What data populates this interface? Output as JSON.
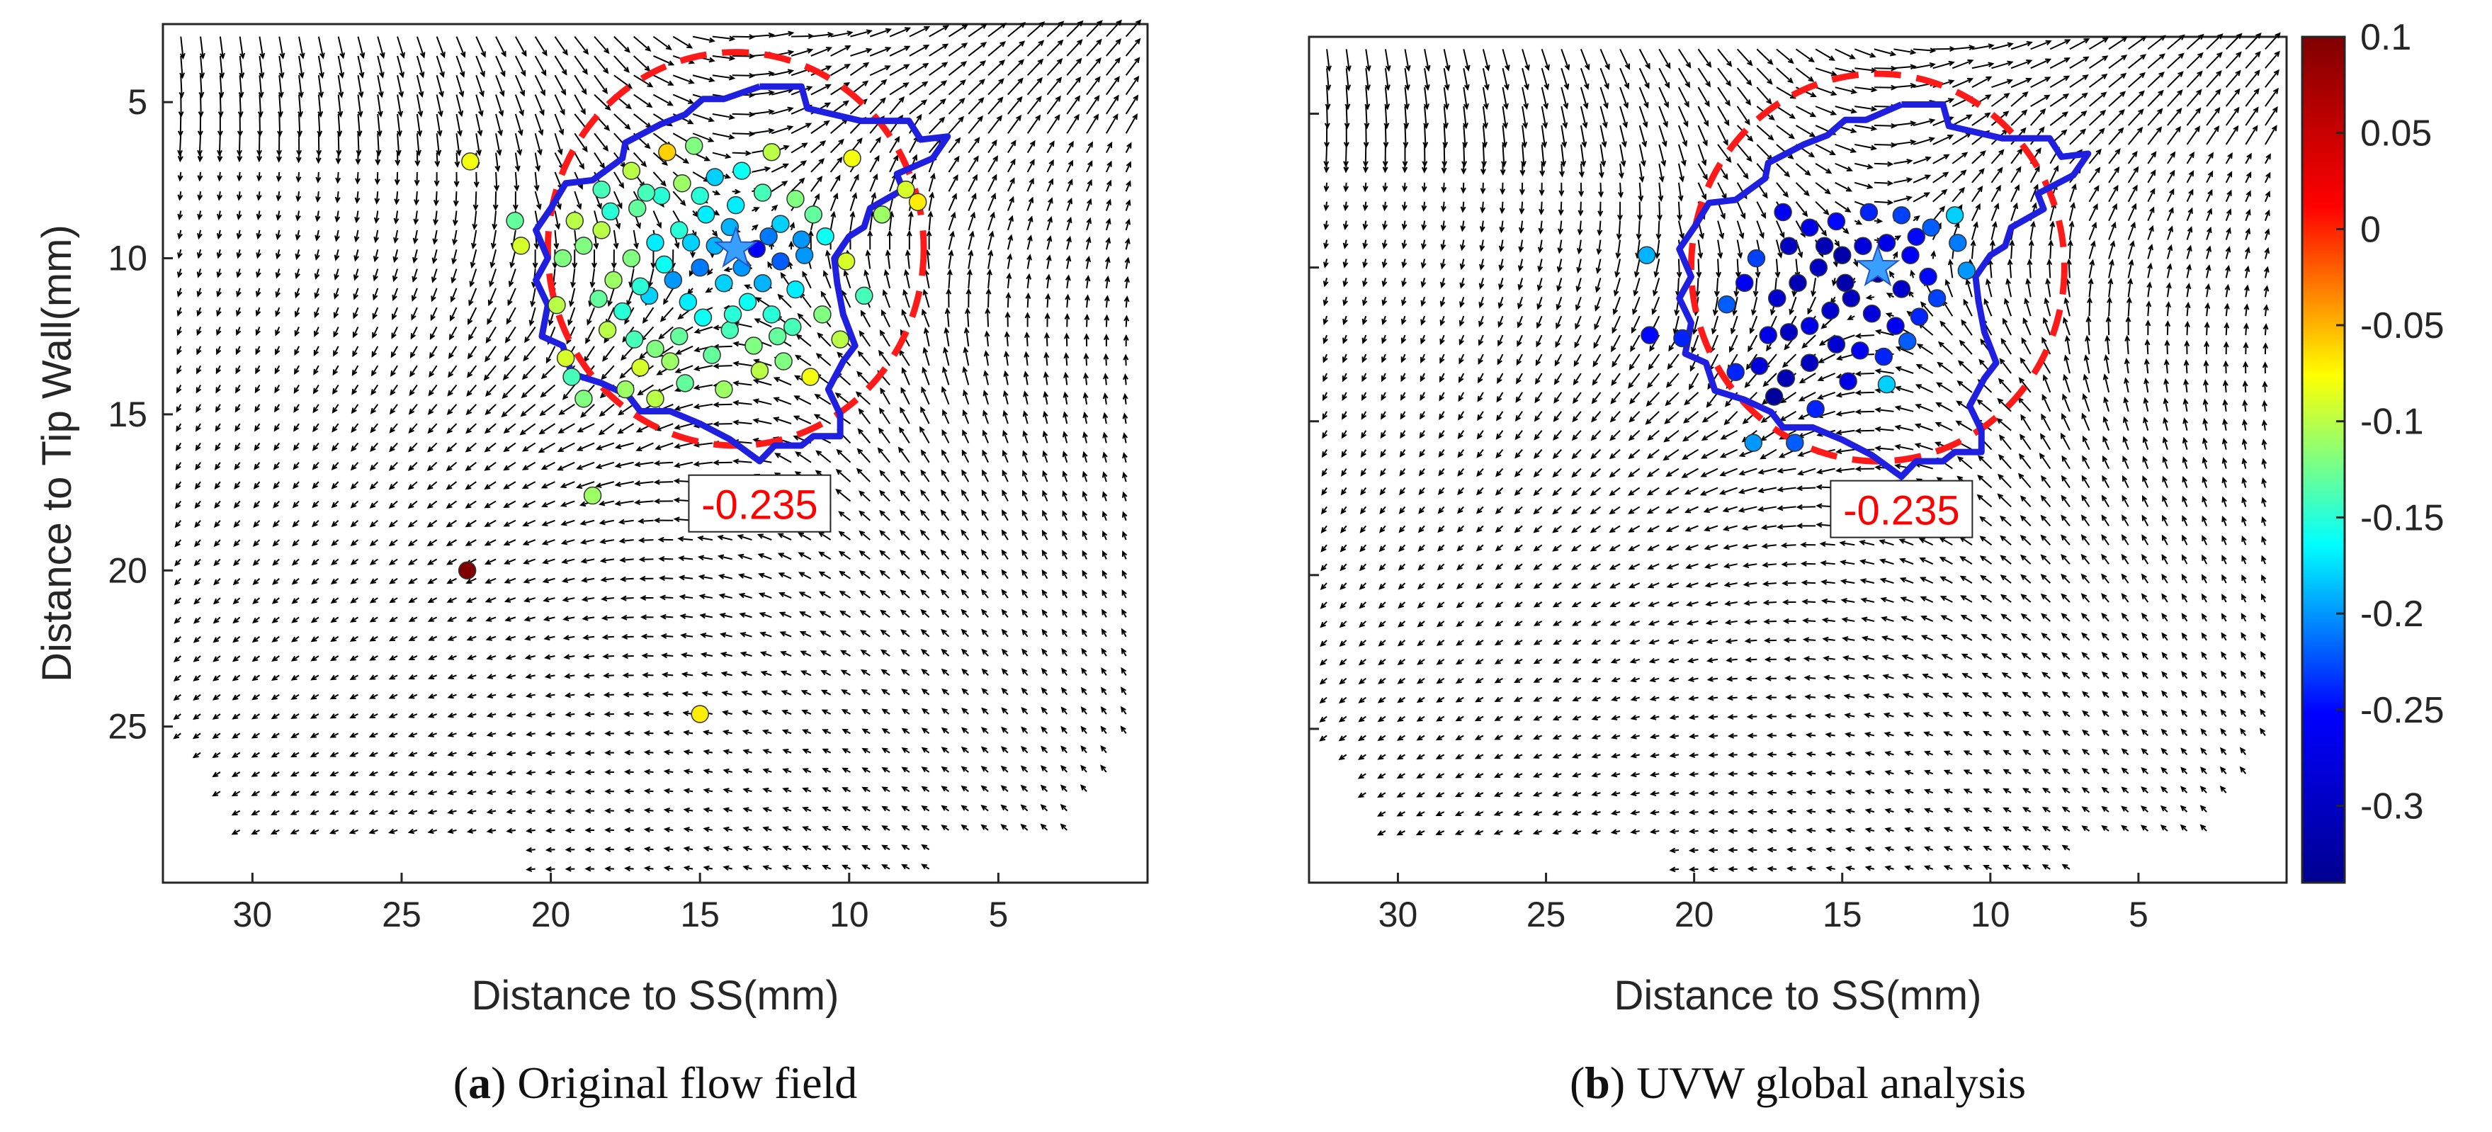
{
  "colormap": {
    "stops": [
      "#00008f",
      "#0000ff",
      "#00ffff",
      "#ffff00",
      "#ff0000",
      "#800000"
    ],
    "min": -0.34,
    "max": 0.1,
    "ticks": [
      0.1,
      0.05,
      0,
      -0.05,
      -0.1,
      -0.15,
      -0.2,
      -0.25,
      -0.3
    ],
    "tick_labels": [
      "0.1",
      "0.05",
      "0",
      "-0.05",
      "-0.1",
      "-0.15",
      "-0.2",
      "-0.25",
      "-0.3"
    ]
  },
  "chart_data": [
    {
      "type": "scatter",
      "panel": "a",
      "caption_letter": "a",
      "caption_text": " Original flow field",
      "xlabel": "Distance to SS(mm)",
      "ylabel": "Distance to Tip Wall(mm)",
      "xlim": [
        33,
        0
      ],
      "ylim": [
        2.5,
        30
      ],
      "x_reversed": true,
      "y_reversed": true,
      "xticks": [
        30,
        25,
        20,
        15,
        10,
        5
      ],
      "yticks": [
        5,
        10,
        15,
        20,
        25
      ],
      "vortex_center": {
        "x": 13.8,
        "y": 9.7
      },
      "reference_circle": {
        "cx": 13.8,
        "cy": 9.7,
        "r": 6.3
      },
      "contour_label": "-0.235",
      "contour_label_position": {
        "x": 13.0,
        "y": 17.9
      },
      "contour_polyline": [
        [
          13.0,
          4.5
        ],
        [
          11.6,
          4.5
        ],
        [
          11.4,
          5.2
        ],
        [
          9.6,
          5.6
        ],
        [
          8.0,
          5.6
        ],
        [
          7.6,
          6.2
        ],
        [
          6.7,
          6.1
        ],
        [
          7.2,
          6.8
        ],
        [
          8.4,
          7.3
        ],
        [
          8.2,
          7.8
        ],
        [
          9.3,
          8.4
        ],
        [
          9.5,
          9.0
        ],
        [
          10.0,
          9.3
        ],
        [
          10.5,
          10.0
        ],
        [
          10.4,
          10.8
        ],
        [
          10.2,
          11.8
        ],
        [
          9.8,
          12.8
        ],
        [
          10.2,
          13.3
        ],
        [
          10.7,
          14.2
        ],
        [
          10.3,
          15.0
        ],
        [
          10.3,
          15.7
        ],
        [
          11.2,
          15.7
        ],
        [
          11.6,
          16.0
        ],
        [
          12.5,
          16.0
        ],
        [
          13.0,
          16.5
        ],
        [
          14.0,
          15.8
        ],
        [
          15.0,
          15.3
        ],
        [
          16.0,
          14.9
        ],
        [
          17.0,
          14.9
        ],
        [
          17.4,
          14.4
        ],
        [
          18.3,
          14.0
        ],
        [
          19.3,
          13.7
        ],
        [
          19.6,
          12.8
        ],
        [
          20.3,
          12.5
        ],
        [
          20.1,
          11.5
        ],
        [
          20.5,
          10.7
        ],
        [
          20.1,
          10.0
        ],
        [
          20.5,
          9.1
        ],
        [
          20.0,
          8.4
        ],
        [
          19.5,
          7.6
        ],
        [
          18.6,
          7.5
        ],
        [
          17.6,
          6.8
        ],
        [
          17.5,
          6.3
        ],
        [
          16.3,
          5.7
        ],
        [
          15.5,
          5.4
        ],
        [
          14.9,
          4.9
        ],
        [
          14.2,
          4.9
        ],
        [
          13.0,
          4.5
        ]
      ],
      "points": [
        [
          22.7,
          6.9,
          -0.08
        ],
        [
          22.8,
          20.0,
          0.1
        ],
        [
          18.6,
          17.6,
          -0.11
        ],
        [
          15.0,
          24.6,
          -0.07
        ],
        [
          21.2,
          8.8,
          -0.13
        ],
        [
          21.0,
          9.6,
          -0.09
        ],
        [
          19.2,
          8.8,
          -0.1
        ],
        [
          19.6,
          10.0,
          -0.12
        ],
        [
          19.8,
          11.5,
          -0.1
        ],
        [
          19.5,
          13.2,
          -0.09
        ],
        [
          19.3,
          13.8,
          -0.14
        ],
        [
          18.9,
          14.5,
          -0.12
        ],
        [
          17.5,
          14.2,
          -0.11
        ],
        [
          16.5,
          14.5,
          -0.1
        ],
        [
          15.5,
          14.0,
          -0.13
        ],
        [
          11.3,
          13.8,
          -0.08
        ],
        [
          10.3,
          12.6,
          -0.1
        ],
        [
          9.5,
          11.2,
          -0.14
        ],
        [
          10.1,
          10.1,
          -0.09
        ],
        [
          8.9,
          8.6,
          -0.11
        ],
        [
          7.7,
          8.2,
          -0.07
        ],
        [
          8.1,
          7.8,
          -0.09
        ],
        [
          9.9,
          6.8,
          -0.08
        ],
        [
          12.6,
          6.6,
          -0.1
        ],
        [
          15.2,
          6.4,
          -0.12
        ],
        [
          16.1,
          6.6,
          -0.06
        ],
        [
          17.3,
          7.2,
          -0.1
        ],
        [
          18.3,
          7.8,
          -0.14
        ],
        [
          18.0,
          8.5,
          -0.15
        ],
        [
          17.1,
          8.4,
          -0.13
        ],
        [
          16.3,
          8.0,
          -0.15
        ],
        [
          15.6,
          7.6,
          -0.11
        ],
        [
          14.5,
          7.4,
          -0.18
        ],
        [
          13.6,
          7.2,
          -0.16
        ],
        [
          12.9,
          7.9,
          -0.14
        ],
        [
          11.8,
          8.1,
          -0.12
        ],
        [
          11.2,
          8.6,
          -0.13
        ],
        [
          10.8,
          9.3,
          -0.16
        ],
        [
          11.5,
          9.9,
          -0.2
        ],
        [
          12.3,
          10.1,
          -0.22
        ],
        [
          13.1,
          9.7,
          -0.26
        ],
        [
          14.0,
          9.0,
          -0.19
        ],
        [
          14.8,
          8.6,
          -0.17
        ],
        [
          15.7,
          9.1,
          -0.15
        ],
        [
          16.5,
          9.5,
          -0.17
        ],
        [
          17.3,
          10.0,
          -0.12
        ],
        [
          17.9,
          10.7,
          -0.11
        ],
        [
          18.4,
          11.3,
          -0.13
        ],
        [
          17.6,
          11.7,
          -0.15
        ],
        [
          16.7,
          11.2,
          -0.18
        ],
        [
          15.9,
          10.7,
          -0.2
        ],
        [
          15.0,
          10.3,
          -0.21
        ],
        [
          14.2,
          10.8,
          -0.18
        ],
        [
          13.4,
          11.4,
          -0.16
        ],
        [
          12.6,
          11.8,
          -0.15
        ],
        [
          11.8,
          11.0,
          -0.17
        ],
        [
          12.4,
          12.5,
          -0.13
        ],
        [
          13.2,
          12.8,
          -0.12
        ],
        [
          14.0,
          12.3,
          -0.14
        ],
        [
          14.9,
          11.9,
          -0.16
        ],
        [
          15.7,
          12.5,
          -0.13
        ],
        [
          16.5,
          12.9,
          -0.12
        ],
        [
          17.2,
          12.6,
          -0.14
        ],
        [
          16.0,
          13.3,
          -0.11
        ],
        [
          14.6,
          13.1,
          -0.13
        ],
        [
          13.0,
          13.6,
          -0.1
        ],
        [
          18.9,
          9.6,
          -0.12
        ],
        [
          18.3,
          9.1,
          -0.1
        ],
        [
          16.8,
          7.9,
          -0.14
        ],
        [
          15.0,
          8.0,
          -0.15
        ],
        [
          13.8,
          8.3,
          -0.17
        ],
        [
          12.3,
          8.9,
          -0.18
        ],
        [
          11.6,
          9.4,
          -0.2
        ],
        [
          12.7,
          9.3,
          -0.21
        ],
        [
          13.6,
          10.3,
          -0.2
        ],
        [
          14.5,
          9.6,
          -0.19
        ],
        [
          15.3,
          9.5,
          -0.18
        ],
        [
          16.2,
          10.2,
          -0.16
        ],
        [
          17.0,
          10.9,
          -0.15
        ],
        [
          15.4,
          11.4,
          -0.17
        ],
        [
          13.9,
          11.8,
          -0.15
        ],
        [
          12.9,
          10.8,
          -0.19
        ],
        [
          11.9,
          12.2,
          -0.14
        ],
        [
          10.9,
          11.8,
          -0.12
        ],
        [
          18.1,
          12.3,
          -0.1
        ],
        [
          17.0,
          13.5,
          -0.09
        ],
        [
          14.2,
          14.2,
          -0.11
        ],
        [
          12.2,
          13.3,
          -0.12
        ]
      ]
    },
    {
      "type": "scatter",
      "panel": "b",
      "caption_letter": "b",
      "caption_text": " UVW global analysis",
      "xlabel": "Distance to SS(mm)",
      "ylabel": "",
      "xlim": [
        33,
        0
      ],
      "ylim": [
        2.5,
        30
      ],
      "x_reversed": true,
      "y_reversed": true,
      "xticks": [
        30,
        25,
        20,
        15,
        10,
        5
      ],
      "yticks": [
        5,
        10,
        15,
        20,
        25
      ],
      "show_ytick_labels": false,
      "vortex_center": {
        "x": 13.8,
        "y": 10.0
      },
      "reference_circle": {
        "cx": 13.8,
        "cy": 10.0,
        "r": 6.3
      },
      "contour_label": "-0.235",
      "contour_label_position": {
        "x": 13.0,
        "y": 17.9
      },
      "contour_polyline": [
        [
          13.0,
          4.7
        ],
        [
          11.6,
          4.7
        ],
        [
          11.4,
          5.4
        ],
        [
          9.6,
          5.8
        ],
        [
          8.0,
          5.8
        ],
        [
          7.6,
          6.4
        ],
        [
          6.7,
          6.3
        ],
        [
          7.2,
          7.0
        ],
        [
          8.4,
          7.6
        ],
        [
          8.2,
          8.1
        ],
        [
          9.3,
          8.7
        ],
        [
          9.5,
          9.3
        ],
        [
          10.0,
          9.6
        ],
        [
          10.5,
          10.3
        ],
        [
          10.4,
          11.1
        ],
        [
          10.2,
          12.1
        ],
        [
          9.8,
          13.1
        ],
        [
          10.2,
          13.6
        ],
        [
          10.7,
          14.5
        ],
        [
          10.3,
          15.3
        ],
        [
          10.3,
          16.0
        ],
        [
          11.2,
          16.0
        ],
        [
          11.6,
          16.3
        ],
        [
          12.5,
          16.3
        ],
        [
          13.0,
          16.8
        ],
        [
          14.0,
          16.1
        ],
        [
          15.0,
          15.6
        ],
        [
          16.0,
          15.2
        ],
        [
          17.0,
          15.2
        ],
        [
          17.4,
          14.7
        ],
        [
          18.3,
          14.3
        ],
        [
          19.3,
          14.0
        ],
        [
          19.6,
          13.1
        ],
        [
          20.3,
          12.8
        ],
        [
          20.1,
          11.8
        ],
        [
          20.5,
          11.0
        ],
        [
          20.1,
          10.3
        ],
        [
          20.5,
          9.4
        ],
        [
          20.0,
          8.7
        ],
        [
          19.5,
          7.9
        ],
        [
          18.6,
          7.8
        ],
        [
          17.6,
          7.1
        ],
        [
          17.5,
          6.6
        ],
        [
          16.3,
          6.0
        ],
        [
          15.5,
          5.7
        ],
        [
          14.9,
          5.2
        ],
        [
          14.2,
          5.2
        ],
        [
          13.0,
          4.7
        ]
      ],
      "points": [
        [
          21.6,
          9.6,
          -0.19
        ],
        [
          21.5,
          12.2,
          -0.25
        ],
        [
          20.4,
          12.3,
          -0.24
        ],
        [
          18.9,
          11.2,
          -0.22
        ],
        [
          18.0,
          15.7,
          -0.2
        ],
        [
          16.6,
          15.7,
          -0.22
        ],
        [
          13.5,
          13.8,
          -0.18
        ],
        [
          17.2,
          11.0,
          -0.29
        ],
        [
          16.5,
          10.5,
          -0.31
        ],
        [
          15.8,
          10.0,
          -0.3
        ],
        [
          15.0,
          9.6,
          -0.32
        ],
        [
          14.3,
          9.3,
          -0.28
        ],
        [
          13.5,
          9.2,
          -0.27
        ],
        [
          12.7,
          9.6,
          -0.26
        ],
        [
          12.1,
          10.3,
          -0.25
        ],
        [
          11.8,
          11.0,
          -0.23
        ],
        [
          12.4,
          11.6,
          -0.24
        ],
        [
          13.2,
          11.9,
          -0.26
        ],
        [
          14.0,
          11.5,
          -0.28
        ],
        [
          14.7,
          11.0,
          -0.3
        ],
        [
          15.4,
          11.4,
          -0.29
        ],
        [
          16.1,
          11.9,
          -0.27
        ],
        [
          16.8,
          12.1,
          -0.3
        ],
        [
          17.5,
          12.2,
          -0.27
        ],
        [
          16.1,
          8.7,
          -0.27
        ],
        [
          15.2,
          8.5,
          -0.25
        ],
        [
          14.1,
          8.2,
          -0.24
        ],
        [
          13.0,
          8.3,
          -0.23
        ],
        [
          12.0,
          8.7,
          -0.22
        ],
        [
          11.1,
          9.2,
          -0.21
        ],
        [
          10.8,
          10.1,
          -0.2
        ],
        [
          11.2,
          8.3,
          -0.18
        ],
        [
          17.9,
          9.7,
          -0.23
        ],
        [
          18.3,
          10.5,
          -0.26
        ],
        [
          17.8,
          13.2,
          -0.28
        ],
        [
          16.9,
          13.6,
          -0.31
        ],
        [
          16.1,
          13.1,
          -0.3
        ],
        [
          15.2,
          12.5,
          -0.29
        ],
        [
          14.4,
          12.7,
          -0.26
        ],
        [
          13.6,
          12.9,
          -0.24
        ],
        [
          12.8,
          12.4,
          -0.22
        ],
        [
          14.8,
          13.7,
          -0.27
        ],
        [
          15.9,
          14.6,
          -0.24
        ],
        [
          17.3,
          14.2,
          -0.33
        ],
        [
          18.6,
          13.4,
          -0.24
        ],
        [
          13.8,
          10.2,
          -0.33
        ],
        [
          14.9,
          10.5,
          -0.32
        ],
        [
          15.6,
          9.3,
          -0.31
        ],
        [
          13.0,
          10.7,
          -0.29
        ],
        [
          16.8,
          9.3,
          -0.3
        ],
        [
          12.5,
          9.0,
          -0.25
        ],
        [
          17.0,
          8.2,
          -0.26
        ]
      ]
    }
  ]
}
